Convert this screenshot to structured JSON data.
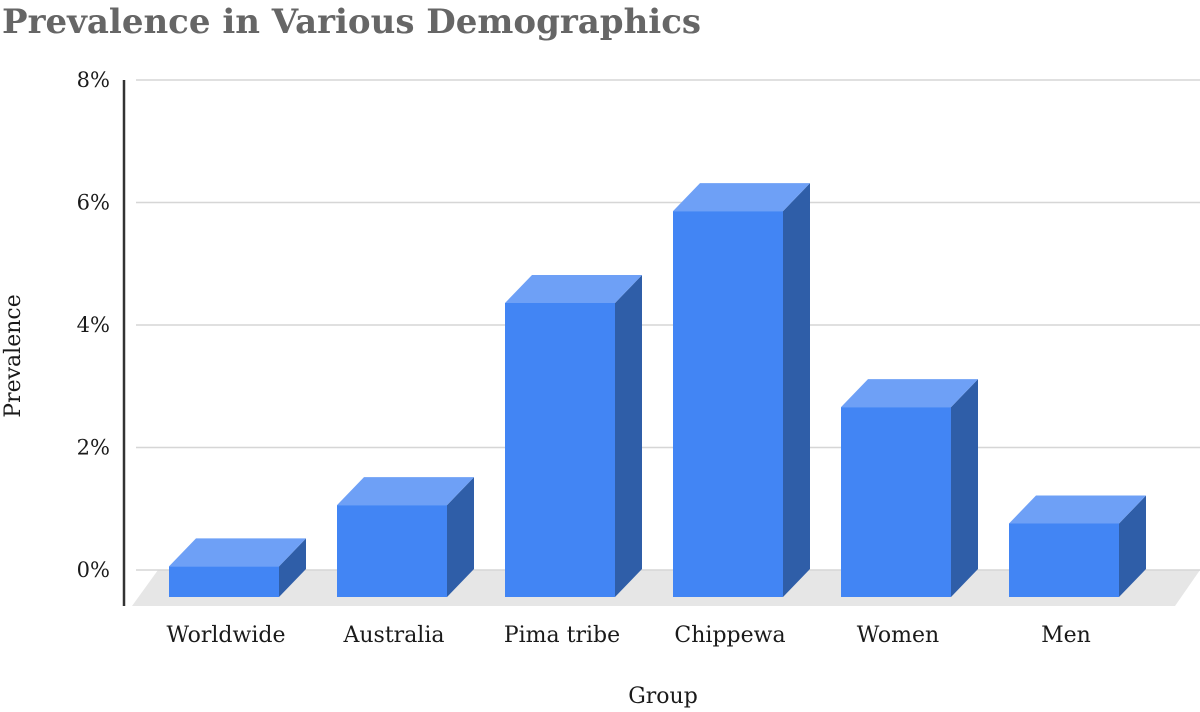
{
  "chart_data": {
    "type": "bar",
    "title": "Prevalence in Various Demographics",
    "xlabel": "Group",
    "ylabel": "Prevalence",
    "categories": [
      "Worldwide",
      "Australia",
      "Pima tribe",
      "Chippewa",
      "Women",
      "Men"
    ],
    "values": [
      0.5,
      1.5,
      4.8,
      6.3,
      3.1,
      1.2
    ],
    "yticks": [
      "0%",
      "2%",
      "4%",
      "6%",
      "8%"
    ],
    "ylim": [
      0,
      8
    ],
    "grid": true,
    "style": "3d",
    "colors": {
      "bar_front": "#4285f4",
      "bar_top": "#6ea0f6",
      "bar_side": "#2f5ea8",
      "floor": "#e6e6e6",
      "title": "#666666"
    }
  }
}
